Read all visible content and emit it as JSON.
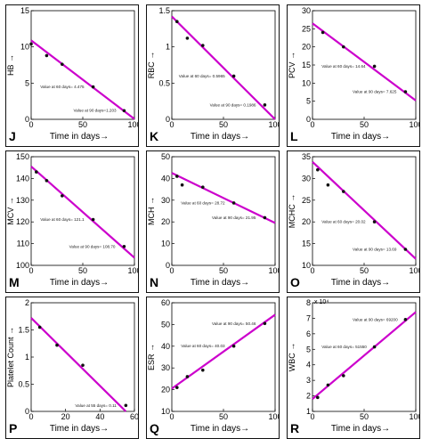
{
  "figure": {
    "line_color": "#cc00cc",
    "point_color": "#111111"
  },
  "chart_data": [
    {
      "id": "J",
      "panel_label": "J",
      "type": "line",
      "xlabel": "Time in days→",
      "ylabel": "HB →",
      "xlim": [
        0,
        100
      ],
      "ylim": [
        0,
        15
      ],
      "xticks": [
        "0",
        "50",
        "100"
      ],
      "yticks": [
        "0",
        "5",
        "10",
        "15"
      ],
      "points": [
        [
          0,
          10.4
        ],
        [
          15,
          8.8
        ],
        [
          30,
          7.6
        ],
        [
          60,
          4.475
        ],
        [
          90,
          1.2
        ]
      ],
      "line": [
        [
          0,
          10.9
        ],
        [
          100,
          0.05
        ]
      ],
      "annotations": [
        {
          "text": "Value at 60 days= 4.475",
          "x": 60,
          "y": 4.475
        },
        {
          "text": "Value at 90 days=1.203",
          "x": 90,
          "y": 1.203
        }
      ]
    },
    {
      "id": "K",
      "panel_label": "K",
      "type": "line",
      "xlabel": "Time in days→",
      "ylabel": "RBC →",
      "xlim": [
        0,
        100
      ],
      "ylim": [
        0,
        1.5
      ],
      "xticks": [
        "0",
        "50",
        "100"
      ],
      "yticks": [
        "0",
        "0.5",
        "1",
        "1.5"
      ],
      "points": [
        [
          5,
          1.35
        ],
        [
          15,
          1.12
        ],
        [
          30,
          1.02
        ],
        [
          60,
          0.5965
        ],
        [
          90,
          0.1986
        ]
      ],
      "line": [
        [
          0,
          1.42
        ],
        [
          100,
          0.0
        ]
      ],
      "annotations": [
        {
          "text": "Value at 60 days= 0.5965",
          "x": 60,
          "y": 0.5965
        },
        {
          "text": "Value at 90 days= 0.1986",
          "x": 90,
          "y": 0.1986
        }
      ]
    },
    {
      "id": "L",
      "panel_label": "L",
      "type": "line",
      "xlabel": "Time in days→",
      "ylabel": "PCV →",
      "xlim": [
        0,
        100
      ],
      "ylim": [
        0,
        30
      ],
      "xticks": [
        "0",
        "50",
        "100"
      ],
      "yticks": [
        "0",
        "5",
        "10",
        "15",
        "20",
        "25",
        "30"
      ],
      "points": [
        [
          10,
          24
        ],
        [
          30,
          20
        ],
        [
          60,
          14.64
        ],
        [
          90,
          7.625
        ]
      ],
      "line": [
        [
          0,
          26.5
        ],
        [
          100,
          5.2
        ]
      ],
      "annotations": [
        {
          "text": "Value at 60 days= 14.64",
          "x": 60,
          "y": 14.64
        },
        {
          "text": "Value at 90 days= 7.625",
          "x": 90,
          "y": 7.625
        }
      ]
    },
    {
      "id": "M",
      "panel_label": "M",
      "type": "line",
      "xlabel": "Time in days→",
      "ylabel": "MCV →",
      "xlim": [
        0,
        100
      ],
      "ylim": [
        100,
        150
      ],
      "xticks": [
        "0",
        "50",
        "100"
      ],
      "yticks": [
        "100",
        "110",
        "120",
        "130",
        "140",
        "150"
      ],
      "points": [
        [
          5,
          143
        ],
        [
          15,
          139
        ],
        [
          30,
          132
        ],
        [
          60,
          121.1
        ],
        [
          90,
          108.7
        ]
      ],
      "line": [
        [
          0,
          145.5
        ],
        [
          100,
          103.5
        ]
      ],
      "annotations": [
        {
          "text": "Value at 60 days= 121.1",
          "x": 60,
          "y": 121.1
        },
        {
          "text": "Value at 90 days= 108.70",
          "x": 90,
          "y": 108.7
        }
      ]
    },
    {
      "id": "N",
      "panel_label": "N",
      "type": "line",
      "xlabel": "Time in days→",
      "ylabel": "MCH →",
      "xlim": [
        0,
        100
      ],
      "ylim": [
        0,
        50
      ],
      "xticks": [
        "0",
        "50",
        "100"
      ],
      "yticks": [
        "0",
        "10",
        "20",
        "30",
        "40",
        "50"
      ],
      "points": [
        [
          5,
          41
        ],
        [
          10,
          37
        ],
        [
          30,
          36
        ],
        [
          60,
          28.72
        ],
        [
          90,
          21.95
        ]
      ],
      "line": [
        [
          0,
          42.5
        ],
        [
          100,
          19.5
        ]
      ],
      "annotations": [
        {
          "text": "Value at 60 days= 28.72",
          "x": 60,
          "y": 28.72
        },
        {
          "text": "Value at 90 days= 21.95",
          "x": 90,
          "y": 21.95
        }
      ]
    },
    {
      "id": "O",
      "panel_label": "O",
      "type": "line",
      "xlabel": "Time in days→",
      "ylabel": "MCHC →",
      "xlim": [
        0,
        100
      ],
      "ylim": [
        10,
        35
      ],
      "xticks": [
        "0",
        "50",
        "100"
      ],
      "yticks": [
        "10",
        "15",
        "20",
        "25",
        "30",
        "35"
      ],
      "points": [
        [
          5,
          32
        ],
        [
          15,
          28.5
        ],
        [
          30,
          27
        ],
        [
          60,
          20.02
        ],
        [
          90,
          13.69
        ]
      ],
      "line": [
        [
          0,
          33.8
        ],
        [
          100,
          11.5
        ]
      ],
      "annotations": [
        {
          "text": "Value at 60 days= 20.02",
          "x": 60,
          "y": 20.02
        },
        {
          "text": "Value at 90 days= 13.69",
          "x": 90,
          "y": 13.69
        }
      ]
    },
    {
      "id": "P",
      "panel_label": "P",
      "type": "line",
      "xlabel": "Time in days→",
      "ylabel": "Platelet Count →",
      "xlim": [
        0,
        60
      ],
      "ylim": [
        0,
        2
      ],
      "xticks": [
        "0",
        "20",
        "40",
        "60"
      ],
      "yticks": [
        "0",
        "0.5",
        "1",
        "1.5",
        "2"
      ],
      "points": [
        [
          5,
          1.55
        ],
        [
          15,
          1.22
        ],
        [
          30,
          0.85
        ],
        [
          55,
          0.11
        ]
      ],
      "line": [
        [
          0,
          1.72
        ],
        [
          55,
          0.0
        ]
      ],
      "annotations": [
        {
          "text": "Value at 55 days= 0.11",
          "x": 55,
          "y": 0.11
        }
      ]
    },
    {
      "id": "Q",
      "panel_label": "Q",
      "type": "line",
      "xlabel": "Time in days→",
      "ylabel": "ESR →",
      "xlim": [
        0,
        100
      ],
      "ylim": [
        10,
        60
      ],
      "xticks": [
        "0",
        "50",
        "100"
      ],
      "yticks": [
        "10",
        "20",
        "30",
        "40",
        "50",
        "60"
      ],
      "points": [
        [
          5,
          21
        ],
        [
          15,
          26
        ],
        [
          30,
          29
        ],
        [
          60,
          40.03
        ],
        [
          90,
          50.46
        ]
      ],
      "line": [
        [
          0,
          20.5
        ],
        [
          100,
          54.5
        ]
      ],
      "annotations": [
        {
          "text": "Value at 60 days= 40.03",
          "x": 60,
          "y": 40.03
        },
        {
          "text": "Value at 90 days= 50.46",
          "x": 90,
          "y": 50.46
        }
      ]
    },
    {
      "id": "R",
      "panel_label": "R",
      "type": "line",
      "xlabel": "Time in days→",
      "ylabel": "WBC →",
      "y_multiplier": "x 10⁴",
      "xlim": [
        0,
        100
      ],
      "ylim": [
        1,
        8
      ],
      "xticks": [
        "0",
        "50",
        "100"
      ],
      "yticks": [
        "1",
        "2",
        "3",
        "4",
        "5",
        "6",
        "7",
        "8"
      ],
      "points": [
        [
          5,
          1.9
        ],
        [
          15,
          2.7
        ],
        [
          30,
          3.3
        ],
        [
          60,
          5.155
        ],
        [
          90,
          6.92
        ]
      ],
      "line": [
        [
          0,
          1.8
        ],
        [
          100,
          7.4
        ]
      ],
      "annotations": [
        {
          "text": "Value at 60 days= 51550",
          "x": 60,
          "y": 5.155
        },
        {
          "text": "Value at 90 days= 69200",
          "x": 90,
          "y": 6.92
        }
      ]
    }
  ]
}
